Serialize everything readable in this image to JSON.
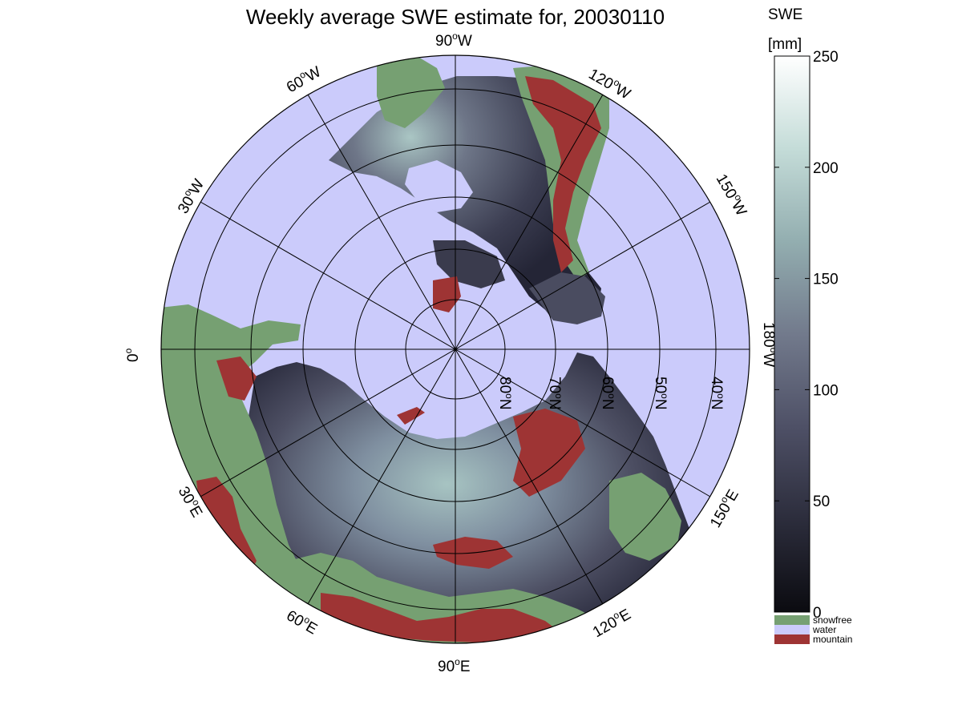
{
  "title": "Weekly average SWE estimate for, 20030110",
  "colorbar": {
    "title_line1": "SWE",
    "title_line2": "[mm]",
    "ticks": [
      {
        "value": 0,
        "label": "0"
      },
      {
        "value": 50,
        "label": "50"
      },
      {
        "value": 100,
        "label": "100"
      },
      {
        "value": 150,
        "label": "150"
      },
      {
        "value": 200,
        "label": "200"
      },
      {
        "value": 250,
        "label": "250"
      }
    ],
    "range": [
      0,
      250
    ],
    "colors": [
      "#0b0b10",
      "#2c2d3c",
      "#4e5066",
      "#727a8c",
      "#93aeb0",
      "#c4dcd8",
      "#ffffff"
    ],
    "categories": [
      {
        "label": "snowfree",
        "color": "#76a072"
      },
      {
        "label": "water",
        "color": "#cbcbfb"
      },
      {
        "label": "mountain",
        "color": "#9e3434"
      }
    ]
  },
  "map": {
    "projection": "north polar stereographic",
    "colors": {
      "water": "#cbcbfb",
      "snowfree": "#76a072",
      "mountain": "#9e3434",
      "snow_low": "#2c2d3c",
      "snow_high": "#9cb8b6",
      "coast": "#000000"
    },
    "parallel_labels": [
      {
        "text": "80",
        "deg": "o",
        "suffix": "N",
        "lat": 80
      },
      {
        "text": "70",
        "deg": "o",
        "suffix": "N",
        "lat": 70
      },
      {
        "text": "60",
        "deg": "o",
        "suffix": "N",
        "lat": 60
      },
      {
        "text": "50",
        "deg": "o",
        "suffix": "N",
        "lat": 50
      },
      {
        "text": "40",
        "deg": "o",
        "suffix": "N",
        "lat": 40
      }
    ],
    "meridian_labels": [
      {
        "text": "90",
        "deg": "o",
        "suffix": "W",
        "lon": -90
      },
      {
        "text": "120",
        "deg": "o",
        "suffix": "W",
        "lon": -120
      },
      {
        "text": "150",
        "deg": "o",
        "suffix": "W",
        "lon": -150
      },
      {
        "text": "180",
        "deg": "o",
        "suffix": "W",
        "lon": 180
      },
      {
        "text": "150",
        "deg": "o",
        "suffix": "E",
        "lon": 150
      },
      {
        "text": "120",
        "deg": "o",
        "suffix": "E",
        "lon": 120
      },
      {
        "text": "90",
        "deg": "o",
        "suffix": "E",
        "lon": 90
      },
      {
        "text": "60",
        "deg": "o",
        "suffix": "E",
        "lon": 60
      },
      {
        "text": "30",
        "deg": "o",
        "suffix": "E",
        "lon": 30
      },
      {
        "text": "0",
        "deg": "o",
        "suffix": "",
        "lon": 0
      },
      {
        "text": "30",
        "deg": "o",
        "suffix": "W",
        "lon": -30
      },
      {
        "text": "60",
        "deg": "o",
        "suffix": "W",
        "lon": -60
      }
    ]
  }
}
